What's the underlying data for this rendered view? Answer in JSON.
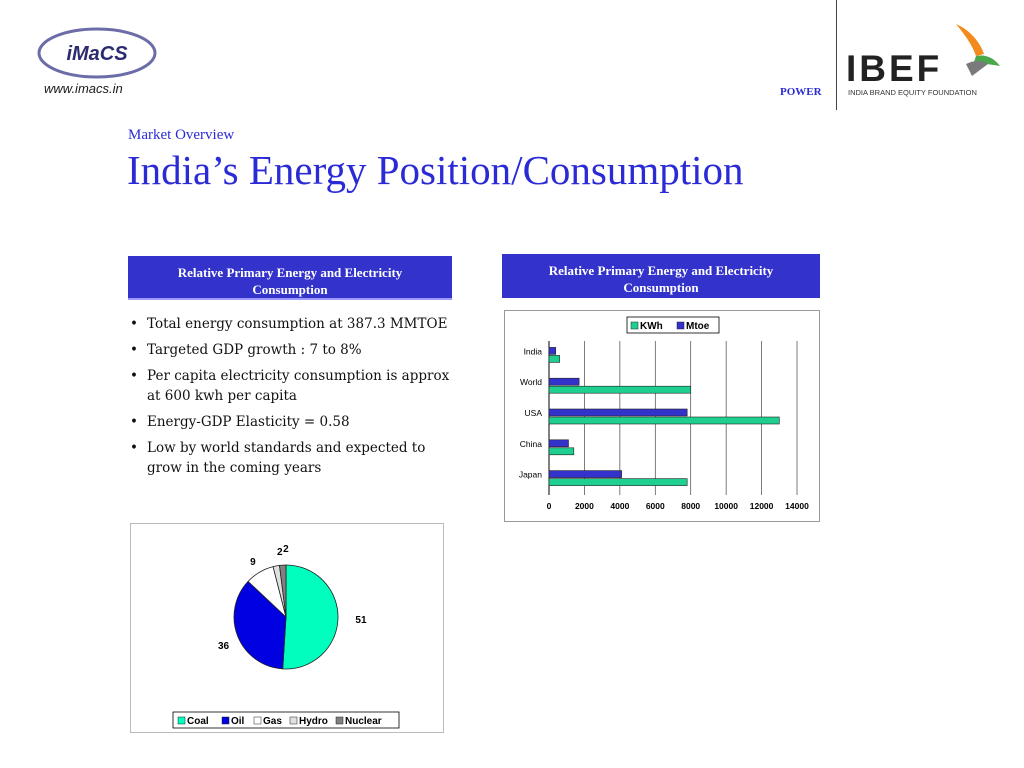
{
  "header": {
    "imacs_logo_text": "iMaCS",
    "imacs_url": "www.imacs.in",
    "section_label": "POWER",
    "ibef_logo_text": "IBEF",
    "ibef_subtitle": "INDIA BRAND EQUITY FOUNDATION"
  },
  "slide": {
    "kicker": "Market Overview",
    "title": "India’s Energy Position/Consumption"
  },
  "left_box": {
    "heading_line1": "Relative Primary Energy and  Electricity",
    "heading_line2": "Consumption",
    "bullets": [
      "Total energy consumption at 387.3 MMTOE",
      "Targeted GDP growth : 7 to 8%",
      "Per capita electricity consumption is approx at 600 kwh per capita",
      "Energy-GDP Elasticity = 0.58",
      "Low by world standards and expected to grow in the coming years"
    ]
  },
  "right_box": {
    "heading_line1": "Relative Primary Energy and  Electricity",
    "heading_line2": "Consumption"
  },
  "chart_data": [
    {
      "type": "bar",
      "orientation": "horizontal",
      "categories": [
        "India",
        "World",
        "USA",
        "China",
        "Japan"
      ],
      "series": [
        {
          "name": "KWh",
          "color": "#1fcf8f",
          "values": [
            600,
            8000,
            13000,
            1400,
            7800
          ]
        },
        {
          "name": "Mtoe",
          "color": "#3333cc",
          "values": [
            380,
            1700,
            7800,
            1100,
            4100
          ]
        }
      ],
      "xlim": [
        0,
        14000
      ],
      "xticks": [
        0,
        2000,
        4000,
        6000,
        8000,
        10000,
        12000,
        14000
      ],
      "grid": true,
      "legend": "top"
    },
    {
      "type": "pie",
      "categories": [
        "Coal",
        "Oil",
        "Gas",
        "Hydro",
        "Nuclear"
      ],
      "values": [
        51,
        36,
        9,
        2,
        2
      ],
      "colors": [
        "#00ffbf",
        "#0000e0",
        "#ffffff",
        "#e0e0e0",
        "#808080"
      ],
      "legend": "bottom"
    }
  ]
}
